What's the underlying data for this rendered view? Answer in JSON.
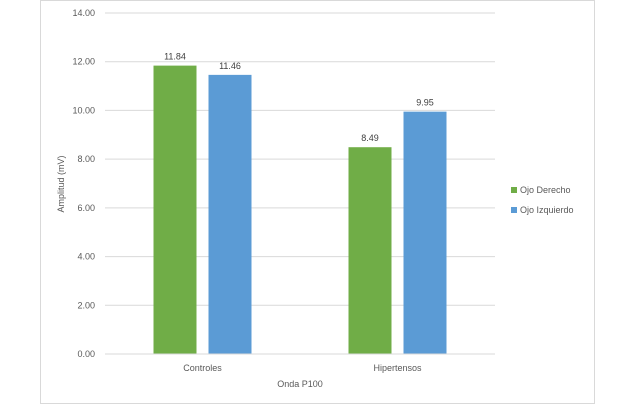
{
  "chart_data": {
    "type": "bar",
    "categories": [
      "Controles",
      "Hipertensos"
    ],
    "series": [
      {
        "name": "Ojo Derecho",
        "values": [
          11.84,
          8.49
        ],
        "color": "#70ad47"
      },
      {
        "name": "Ojo Izquierdo",
        "values": [
          11.46,
          9.95
        ],
        "color": "#5b9bd5"
      }
    ],
    "data_labels": [
      [
        "11.84",
        "8.49"
      ],
      [
        "11.46",
        "9.95"
      ]
    ],
    "xlabel": "Onda P100",
    "ylabel": "Amplitud (mV)",
    "ylim": [
      0,
      14
    ],
    "yticks": [
      "0.00",
      "2.00",
      "4.00",
      "6.00",
      "8.00",
      "10.00",
      "12.00",
      "14.00"
    ],
    "grid": true,
    "gridline_color": "#d9d9d9",
    "legend_position": "right"
  }
}
